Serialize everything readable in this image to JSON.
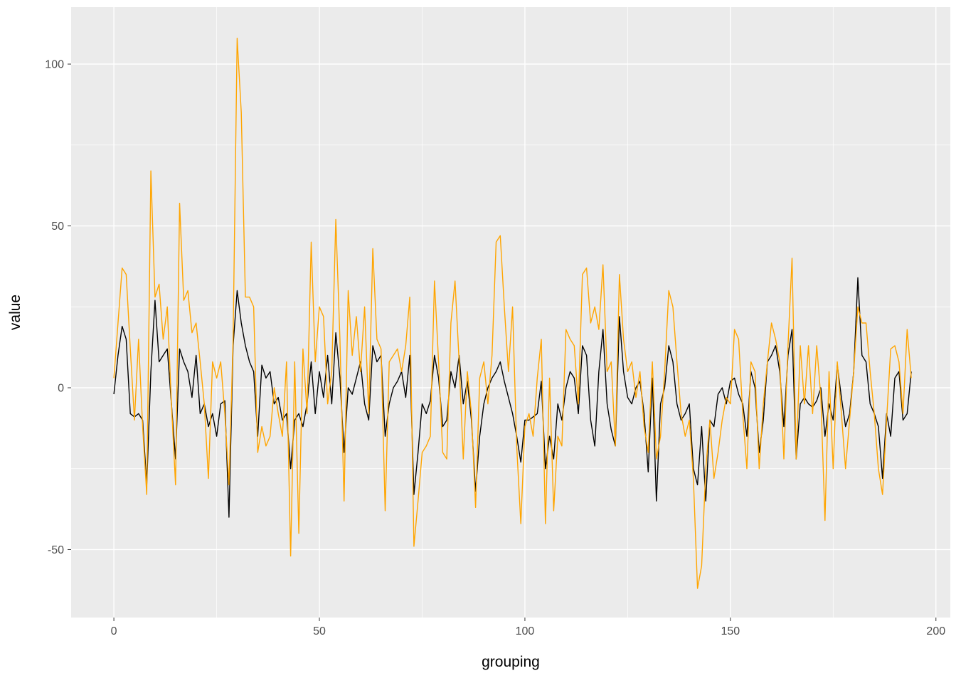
{
  "chart_data": {
    "type": "line",
    "title": "",
    "xlabel": "grouping",
    "ylabel": "value",
    "panel_bg": "#EBEBEB",
    "grid_color": "#FFFFFF",
    "tick_color": "#333333",
    "tick_label_color": "#4D4D4D",
    "legend": "none",
    "xlim": [
      -10.4,
      203.5
    ],
    "ylim": [
      -71,
      117.6
    ],
    "x_ticks": [
      0,
      50,
      100,
      150,
      200
    ],
    "y_ticks": [
      -50,
      0,
      50,
      100
    ],
    "x_minor_ticks": [
      25,
      75,
      125,
      175
    ],
    "y_minor_ticks": [
      -25,
      25,
      75
    ],
    "x_is_index": true,
    "x_start": 0,
    "x_step": 1,
    "series": [
      {
        "name": "black",
        "color": "#000000",
        "values": [
          -2,
          10,
          19,
          15,
          -8,
          -9,
          -8,
          -10,
          -30,
          5,
          27,
          8,
          10,
          12,
          -5,
          -22,
          12,
          8,
          5,
          -3,
          10,
          -8,
          -5,
          -12,
          -8,
          -15,
          -5,
          -4,
          -40,
          13,
          30,
          20,
          13,
          8,
          5,
          -15,
          7,
          3,
          5,
          -5,
          -3,
          -10,
          -8,
          -25,
          -10,
          -8,
          -12,
          -5,
          8,
          -8,
          5,
          -3,
          10,
          -5,
          17,
          3,
          -20,
          0,
          -2,
          3,
          8,
          -5,
          -10,
          13,
          8,
          10,
          -15,
          -5,
          0,
          2,
          5,
          -3,
          10,
          -33,
          -20,
          -5,
          -8,
          -4,
          10,
          3,
          -12,
          -10,
          5,
          0,
          10,
          -5,
          2,
          -10,
          -32,
          -15,
          -5,
          0,
          3,
          5,
          8,
          2,
          -3,
          -8,
          -15,
          -23,
          -10,
          -10,
          -9,
          -8,
          2,
          -25,
          -15,
          -22,
          -5,
          -10,
          0,
          5,
          3,
          -8,
          13,
          10,
          -10,
          -18,
          5,
          18,
          -5,
          -13,
          -18,
          22,
          5,
          -3,
          -5,
          0,
          2,
          -8,
          -26,
          3,
          -35,
          -5,
          0,
          13,
          8,
          -5,
          -10,
          -8,
          -5,
          -25,
          -30,
          -12,
          -35,
          -10,
          -12,
          -2,
          0,
          -5,
          2,
          3,
          -2,
          -5,
          -15,
          5,
          0,
          -20,
          -10,
          8,
          10,
          13,
          5,
          -12,
          10,
          18,
          -22,
          -5,
          -3,
          -5,
          -6,
          -4,
          0,
          -15,
          -5,
          -10,
          7,
          -3,
          -12,
          -8,
          5,
          34,
          10,
          8,
          -5,
          -8,
          -12,
          -28,
          -8,
          -15,
          3,
          5,
          -10,
          -8,
          5
        ]
      },
      {
        "name": "orange",
        "color": "#FFA500",
        "values": [
          3,
          20,
          37,
          35,
          12,
          -10,
          15,
          -12,
          -33,
          67,
          28,
          32,
          15,
          25,
          -5,
          -30,
          57,
          27,
          30,
          17,
          20,
          8,
          -5,
          -28,
          8,
          3,
          8,
          -8,
          -30,
          15,
          108,
          85,
          28,
          28,
          25,
          -20,
          -12,
          -18,
          -15,
          0,
          -8,
          -15,
          8,
          -52,
          8,
          -45,
          12,
          -8,
          45,
          8,
          25,
          22,
          -5,
          5,
          52,
          15,
          -35,
          30,
          10,
          22,
          5,
          25,
          -8,
          43,
          15,
          12,
          -38,
          8,
          10,
          12,
          5,
          13,
          28,
          -49,
          -35,
          -20,
          -18,
          -15,
          33,
          8,
          -20,
          -22,
          20,
          33,
          8,
          -22,
          5,
          -8,
          -37,
          3,
          8,
          -5,
          10,
          45,
          47,
          25,
          5,
          25,
          -18,
          -42,
          -12,
          -8,
          -15,
          3,
          15,
          -42,
          3,
          -38,
          -15,
          -18,
          18,
          15,
          13,
          -5,
          35,
          37,
          20,
          25,
          18,
          38,
          5,
          8,
          -18,
          35,
          15,
          5,
          8,
          -3,
          5,
          -12,
          -20,
          8,
          -22,
          -15,
          5,
          30,
          25,
          8,
          -8,
          -15,
          -10,
          -28,
          -62,
          -55,
          -25,
          -10,
          -28,
          -20,
          -10,
          -3,
          -5,
          18,
          15,
          -8,
          -25,
          8,
          5,
          -25,
          -5,
          8,
          20,
          15,
          8,
          -22,
          13,
          40,
          -22,
          13,
          -5,
          13,
          -8,
          13,
          -3,
          -41,
          5,
          -25,
          8,
          -8,
          -25,
          -10,
          5,
          25,
          20,
          20,
          5,
          -8,
          -25,
          -33,
          -10,
          12,
          13,
          8,
          -8,
          18,
          3
        ]
      }
    ]
  }
}
